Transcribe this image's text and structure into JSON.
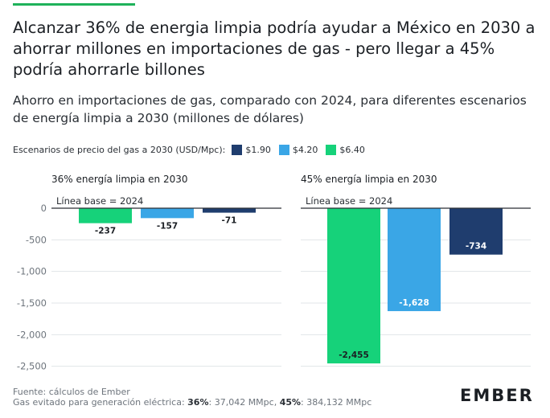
{
  "title": "Alcanzar 36% de energia limpia podría ayudar a México en 2030 a ahorrar millones en importaciones de gas - pero llegar a 45% podría ahorrarle billones",
  "subtitle": "Ahorro en importaciones de gas, comparado con 2024, para diferentes escenarios de energía limpia a 2030 (millones de dólares)",
  "legend": {
    "title": "Escenarios de precio del gas a 2030 (USD/Mpc):",
    "items": [
      {
        "label": "$1.90",
        "color": "#1f3d6e"
      },
      {
        "label": "$4.20",
        "color": "#3aa6e6"
      },
      {
        "label": "$6.40",
        "color": "#16d27a"
      }
    ]
  },
  "chart_data": [
    {
      "type": "bar",
      "title": "36% energía limpia en 2030",
      "baseline_label": "Línea base = 2024",
      "ylim": [
        -2600,
        0
      ],
      "yticks": [
        0,
        -500,
        -1000,
        -1500,
        -2000,
        -2500
      ],
      "ytick_labels": [
        "0",
        "-500",
        "-1,000",
        "-1,500",
        "-2,000",
        "-2,500"
      ],
      "categories": [
        "$6.40",
        "$4.20",
        "$1.90"
      ],
      "values": [
        -237,
        -157,
        -71
      ],
      "value_labels": [
        "-237",
        "-157",
        "-71"
      ],
      "colors": [
        "#16d27a",
        "#3aa6e6",
        "#1f3d6e"
      ]
    },
    {
      "type": "bar",
      "title": "45% energía limpia en 2030",
      "baseline_label": "Línea base = 2024",
      "ylim": [
        -2600,
        0
      ],
      "yticks": [
        0,
        -500,
        -1000,
        -1500,
        -2000,
        -2500
      ],
      "categories": [
        "$6.40",
        "$4.20",
        "$1.90"
      ],
      "values": [
        -2455,
        -1628,
        -734
      ],
      "value_labels": [
        "-2,455",
        "-1,628",
        "-734"
      ],
      "colors": [
        "#16d27a",
        "#3aa6e6",
        "#1f3d6e"
      ]
    }
  ],
  "footer": {
    "source": "Fuente: cálculos de Ember",
    "gas_prefix": "Gas evitado para generación eléctrica: ",
    "p36_label": "36%",
    "p36_value": ": 37,042 MMpc, ",
    "p45_label": "45%",
    "p45_value": ": 384,132 MMpc"
  },
  "logo": "EMBER"
}
